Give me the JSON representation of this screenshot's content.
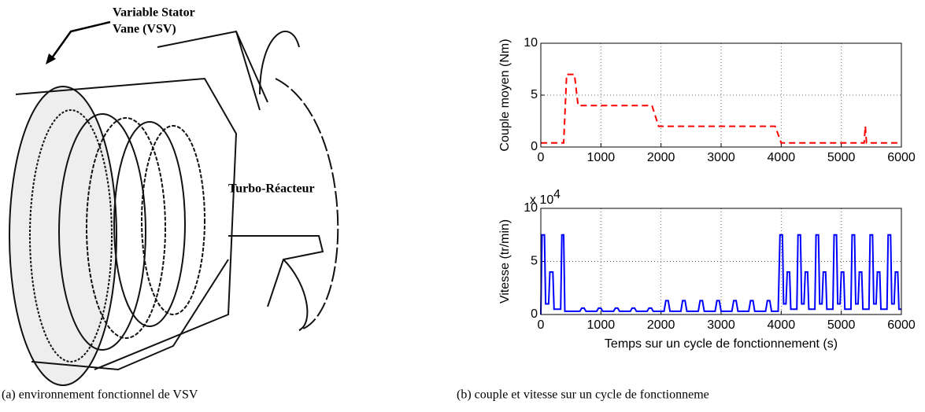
{
  "figure": {
    "drawing_labels": [
      "Variable Stator",
      "Vane (VSV)",
      "Turbo-Réacteur"
    ],
    "captions": [
      "(a) environnement fonctionnel de VSV",
      "(b) couple et vitesse sur un cycle de fonctionneme"
    ]
  },
  "chart_data": [
    {
      "type": "line",
      "ylabel": "Couple moyen (Nm)",
      "line_style": "dashed",
      "grid": true,
      "series": [
        {
          "color": "#ff0000",
          "x": [
            0,
            380,
            430,
            560,
            620,
            1850,
            1960,
            3900,
            4000,
            5380,
            5400,
            5420,
            6000
          ],
          "values": [
            0.4,
            0.4,
            7,
            7,
            4,
            4,
            2,
            2,
            0.4,
            0.4,
            2,
            0.4,
            0.4
          ]
        }
      ],
      "xlim": [
        0,
        6000
      ],
      "xticks": [
        0,
        1000,
        2000,
        3000,
        4000,
        5000,
        6000
      ],
      "ylim": [
        0,
        10
      ],
      "yticks": [
        0,
        5,
        10
      ]
    },
    {
      "type": "line",
      "ylabel": "Vitesse (tr/min)",
      "xlabel": "Temps sur un cycle de fonctionnement (s)",
      "y_scale_label": "x 10",
      "y_scale_exponent": "4",
      "line_style": "solid",
      "grid": true,
      "series": [
        {
          "color": "#0000ff",
          "x": [
            0,
            20,
            60,
            80,
            130,
            150,
            200,
            220,
            330,
            350,
            380,
            400,
            650,
            680,
            720,
            750,
            930,
            960,
            1000,
            1030,
            1210,
            1240,
            1280,
            1310,
            1490,
            1520,
            1560,
            1590,
            1770,
            1800,
            1840,
            1870,
            2050,
            2080,
            2120,
            2150,
            2330,
            2360,
            2400,
            2430,
            2620,
            2650,
            2690,
            2720,
            2900,
            2930,
            2970,
            3000,
            3180,
            3210,
            3250,
            3280,
            3460,
            3490,
            3530,
            3560,
            3740,
            3770,
            3810,
            3840,
            3950,
            3980,
            4020,
            4040,
            4080,
            4100,
            4140,
            4160,
            4260,
            4280,
            4320,
            4340,
            4380,
            4400,
            4440,
            4460,
            4560,
            4580,
            4620,
            4640,
            4680,
            4700,
            4740,
            4760,
            4860,
            4880,
            4920,
            4940,
            4980,
            5000,
            5040,
            5060,
            5160,
            5180,
            5220,
            5240,
            5280,
            5300,
            5340,
            5360,
            5460,
            5480,
            5520,
            5540,
            5580,
            5600,
            5640,
            5660,
            5760,
            5780,
            5820,
            5840,
            5880,
            5900,
            5940,
            5960,
            6000
          ],
          "values": [
            0,
            7.5,
            7.5,
            1,
            1,
            4,
            4,
            0.5,
            0.5,
            7.5,
            7.5,
            0.3,
            0.3,
            0.6,
            0.6,
            0.3,
            0.3,
            0.6,
            0.6,
            0.3,
            0.3,
            0.6,
            0.6,
            0.3,
            0.3,
            0.6,
            0.6,
            0.3,
            0.3,
            0.6,
            0.6,
            0.3,
            0.3,
            1.3,
            1.3,
            0.3,
            0.3,
            1.3,
            1.3,
            0.3,
            0.3,
            1.3,
            1.3,
            0.3,
            0.3,
            1.3,
            1.3,
            0.3,
            0.3,
            1.3,
            1.3,
            0.3,
            0.3,
            1.3,
            1.3,
            0.3,
            0.3,
            1.3,
            1.3,
            0.3,
            0.3,
            7.5,
            7.5,
            1,
            1,
            4,
            4,
            0.5,
            0.5,
            7.5,
            7.5,
            1,
            1,
            4,
            4,
            0.5,
            0.5,
            7.5,
            7.5,
            1,
            1,
            4,
            4,
            0.5,
            0.5,
            7.5,
            7.5,
            1,
            1,
            4,
            4,
            0.5,
            0.5,
            7.5,
            7.5,
            1,
            1,
            4,
            4,
            0.5,
            0.5,
            7.5,
            7.5,
            1,
            1,
            4,
            4,
            0.5,
            0.5,
            7.5,
            7.5,
            1,
            1,
            4,
            4,
            0.5,
            0.5
          ]
        }
      ],
      "xlim": [
        0,
        6000
      ],
      "xticks": [
        0,
        1000,
        2000,
        3000,
        4000,
        5000,
        6000
      ],
      "ylim": [
        0,
        10
      ],
      "yticks": [
        0,
        5,
        10
      ]
    }
  ]
}
